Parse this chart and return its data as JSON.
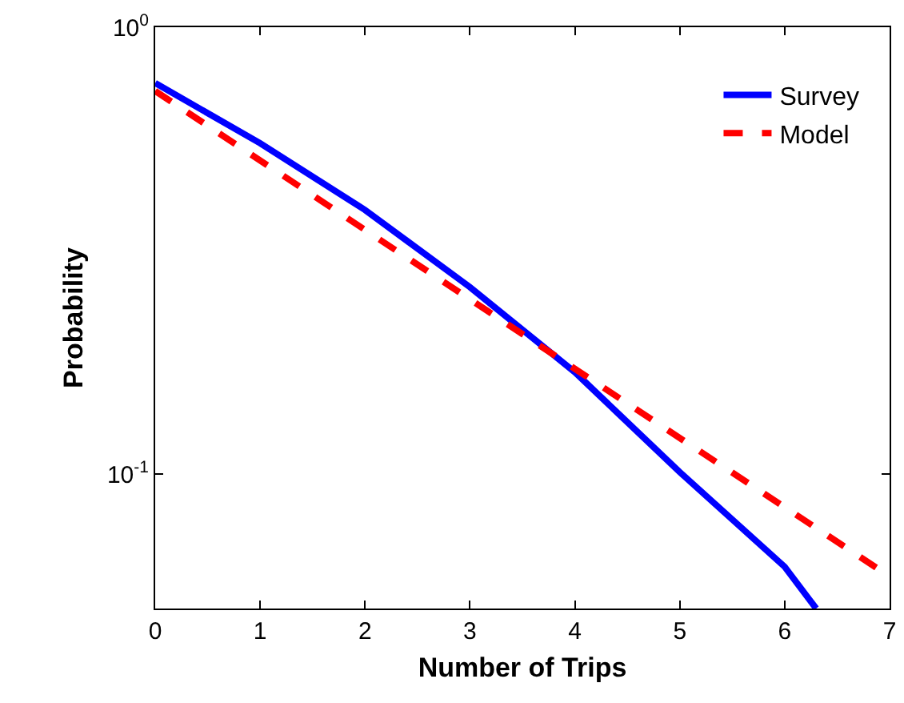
{
  "chart_data": {
    "type": "line",
    "xlabel": "Number of Trips",
    "ylabel": "Probability",
    "series": [
      {
        "name": "Survey",
        "color": "#0000ff",
        "line_style": "solid",
        "x": [
          0,
          1,
          2,
          3,
          4,
          5,
          6,
          6.3
        ],
        "values": [
          0.75,
          0.55,
          0.39,
          0.262,
          0.169,
          0.101,
          0.062,
          0.05
        ]
      },
      {
        "name": "Model",
        "color": "#ff0000",
        "line_style": "dashed",
        "x": [
          0,
          4,
          7
        ],
        "values": [
          0.72,
          0.172,
          0.059
        ]
      }
    ],
    "log": "y",
    "xlim": [
      0,
      7
    ],
    "xticks": [
      0,
      1,
      2,
      3,
      4,
      5,
      6,
      7
    ],
    "ylim": [
      0.05,
      1
    ],
    "yticks": [
      {
        "value": 1,
        "label": "10$^{0}$"
      },
      {
        "value": 0.1,
        "label": "10$^{-1}$"
      }
    ],
    "grid": false,
    "legend": "top right",
    "marker": "none"
  }
}
